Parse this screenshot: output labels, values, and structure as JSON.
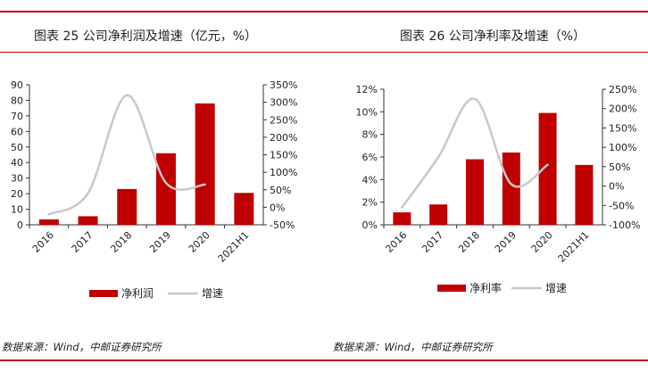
{
  "figures": [
    {
      "title": "图表 25 公司净利润及增速（亿元，%）",
      "source": "数据来源：Wind，中邮证券研究所"
    },
    {
      "title": "图表 26 公司净利率及增速（%）",
      "source": "数据来源：Wind，中邮证券研究所"
    }
  ],
  "colors": {
    "bar": "#c00000",
    "line": "#c8c8c8",
    "axis": "#333333",
    "rule": "#c00000"
  },
  "chart_data": [
    {
      "type": "bar",
      "combo": "bar+line (secondary axis)",
      "categories": [
        "2016",
        "2017",
        "2018",
        "2019",
        "2020",
        "2021H1"
      ],
      "series": [
        {
          "name": "净利润",
          "type": "bar",
          "axis": "left",
          "values": [
            3.5,
            5.5,
            23,
            46,
            78,
            20.5
          ]
        },
        {
          "name": "增速",
          "type": "line",
          "axis": "right",
          "values": [
            -20,
            40,
            320,
            70,
            65,
            null
          ]
        }
      ],
      "ylim": [
        0,
        90
      ],
      "yticks": [
        "0",
        "10",
        "20",
        "30",
        "40",
        "50",
        "60",
        "70",
        "80",
        "90"
      ],
      "y2lim": [
        -50,
        350
      ],
      "y2ticks": [
        "-50%",
        "0%",
        "50%",
        "100%",
        "150%",
        "200%",
        "250%",
        "300%",
        "350%"
      ],
      "legend": "bottom"
    },
    {
      "type": "bar",
      "combo": "bar+line (secondary axis)",
      "categories": [
        "2016",
        "2017",
        "2018",
        "2019",
        "2020",
        "2021H1"
      ],
      "series": [
        {
          "name": "净利率",
          "type": "bar",
          "axis": "left",
          "values": [
            1.1,
            1.8,
            5.8,
            6.4,
            9.9,
            5.3
          ]
        },
        {
          "name": "增速",
          "type": "line",
          "axis": "right",
          "values": [
            -55,
            75,
            225,
            5,
            55,
            null
          ]
        }
      ],
      "ylim": [
        0,
        12
      ],
      "yticks": [
        "0%",
        "2%",
        "4%",
        "6%",
        "8%",
        "10%",
        "12%"
      ],
      "y2lim": [
        -100,
        250
      ],
      "y2ticks": [
        "-100%",
        "-50%",
        "0%",
        "50%",
        "100%",
        "150%",
        "200%",
        "250%"
      ],
      "legend": "bottom"
    }
  ]
}
